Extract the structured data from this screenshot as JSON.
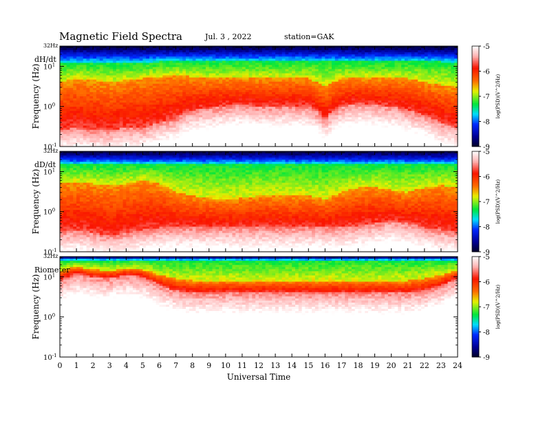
{
  "header": {
    "title": "Magnetic  Field  Spectra",
    "date": "Jul.  3  , 2022",
    "station": "station=GAK"
  },
  "chart_data": [
    {
      "type": "heatmap",
      "panel_label": "dH/dt",
      "ylabel": "Frequency  (Hz)",
      "xlabel": "",
      "x_ticks": [
        "0",
        "1",
        "2",
        "3",
        "4",
        "5",
        "6",
        "7",
        "8",
        "9",
        "10",
        "11",
        "12",
        "13",
        "14",
        "15",
        "16",
        "17",
        "18",
        "19",
        "20",
        "21",
        "22",
        "23",
        "24"
      ],
      "xlim": [
        0,
        24
      ],
      "y_ticks": [
        "10^-1",
        "10^0",
        "10^1"
      ],
      "y_top_label": "32Hz",
      "ylim": [
        0.1,
        32
      ],
      "y_scale": "log",
      "colorbar": {
        "label": "log(PSD)(V^2/Hz)",
        "ticks": [
          "-5",
          "-6",
          "-7",
          "-8",
          "-9"
        ],
        "range": [
          -9,
          -5
        ]
      },
      "profile": {
        "hours": [
          0,
          1,
          2,
          3,
          4,
          5,
          6,
          7,
          8,
          9,
          10,
          11,
          12,
          13,
          14,
          15,
          16,
          17,
          18,
          19,
          20,
          21,
          22,
          23,
          24
        ],
        "green_top_hz": [
          12,
          12,
          12,
          12,
          12,
          12,
          13,
          13,
          13,
          13,
          13,
          13,
          13,
          13,
          13,
          13,
          13,
          13,
          13,
          13,
          13,
          13,
          13,
          13,
          12
        ],
        "yellow_lower_hz": [
          4,
          5,
          4.5,
          4,
          4.5,
          5,
          5.5,
          6,
          5.5,
          5,
          5,
          5,
          5,
          5,
          5,
          5,
          3,
          5,
          5,
          5,
          5,
          5,
          4,
          3.5,
          3
        ],
        "red_lower_hz": [
          0.25,
          0.3,
          0.25,
          0.25,
          0.3,
          0.3,
          0.4,
          0.5,
          0.8,
          0.9,
          1.0,
          1.1,
          1.0,
          1.0,
          1.0,
          1.0,
          0.5,
          1.0,
          1.2,
          1.1,
          1.0,
          0.8,
          0.6,
          0.4,
          0.3
        ]
      }
    },
    {
      "type": "heatmap",
      "panel_label": "dD/dt",
      "ylabel": "Frequency  (Hz)",
      "xlabel": "",
      "x_ticks": [
        "0",
        "1",
        "2",
        "3",
        "4",
        "5",
        "6",
        "7",
        "8",
        "9",
        "10",
        "11",
        "12",
        "13",
        "14",
        "15",
        "16",
        "17",
        "18",
        "19",
        "20",
        "21",
        "22",
        "23",
        "24"
      ],
      "xlim": [
        0,
        24
      ],
      "y_ticks": [
        "10^-1",
        "10^0",
        "10^1"
      ],
      "y_top_label": "32Hz",
      "ylim": [
        0.1,
        32
      ],
      "y_scale": "log",
      "colorbar": {
        "label": "log(PSD)(V^2/Hz)",
        "ticks": [
          "-5",
          "-6",
          "-7",
          "-8",
          "-9"
        ],
        "range": [
          -9,
          -5
        ]
      },
      "profile": {
        "hours": [
          0,
          1,
          2,
          3,
          4,
          5,
          6,
          7,
          8,
          9,
          10,
          11,
          12,
          13,
          14,
          15,
          16,
          17,
          18,
          19,
          20,
          21,
          22,
          23,
          24
        ],
        "green_top_hz": [
          15,
          15,
          15,
          15,
          15,
          15,
          15,
          15,
          15,
          15,
          15,
          15,
          15,
          15,
          15,
          15,
          15,
          15,
          15,
          15,
          15,
          15,
          15,
          15,
          15
        ],
        "yellow_lower_hz": [
          5,
          5.5,
          5,
          4.5,
          5,
          6,
          5,
          3,
          2.5,
          2.2,
          2,
          2.2,
          2.5,
          2.5,
          2.5,
          2.5,
          2,
          3,
          4,
          4,
          3.5,
          3,
          4,
          4.5,
          4
        ],
        "red_lower_hz": [
          0.3,
          0.35,
          0.3,
          0.25,
          0.3,
          0.35,
          0.4,
          0.4,
          0.4,
          0.4,
          0.4,
          0.4,
          0.4,
          0.4,
          0.4,
          0.4,
          0.4,
          0.4,
          0.45,
          0.5,
          0.6,
          0.5,
          0.4,
          0.35,
          0.3
        ]
      }
    },
    {
      "type": "heatmap",
      "panel_label": "Riometer",
      "ylabel": "Frequency  (Hz)",
      "xlabel": "Universal Time",
      "x_ticks": [
        "0",
        "1",
        "2",
        "3",
        "4",
        "5",
        "6",
        "7",
        "8",
        "9",
        "10",
        "11",
        "12",
        "13",
        "14",
        "15",
        "16",
        "17",
        "18",
        "19",
        "20",
        "21",
        "22",
        "23",
        "24"
      ],
      "xlim": [
        0,
        24
      ],
      "y_ticks": [
        "10^-1",
        "10^0",
        "10^1"
      ],
      "y_top_label": "32Hz",
      "ylim": [
        0.1,
        32
      ],
      "y_scale": "log",
      "colorbar": {
        "label": "log(PSD)(V^2/Hz)",
        "ticks": [
          "-5",
          "-6",
          "-7",
          "-8",
          "-9"
        ],
        "range": [
          -9,
          -5
        ]
      },
      "profile": {
        "hours": [
          0,
          1,
          2,
          3,
          4,
          5,
          6,
          7,
          8,
          9,
          10,
          11,
          12,
          13,
          14,
          15,
          16,
          17,
          18,
          19,
          20,
          21,
          22,
          23,
          24
        ],
        "green_top_hz": [
          26,
          26,
          26,
          26,
          26,
          26,
          26,
          26,
          26,
          26,
          26,
          26,
          26,
          26,
          26,
          26,
          26,
          26,
          26,
          26,
          26,
          26,
          26,
          26,
          26
        ],
        "yellow_lower_hz": [
          14,
          18,
          15,
          14,
          16,
          15,
          11,
          9,
          8,
          8,
          8,
          8,
          8,
          8,
          8,
          8,
          8,
          8,
          8,
          8,
          8,
          8,
          9,
          11,
          14
        ],
        "red_lower_hz": [
          8,
          12,
          10,
          9,
          11,
          10,
          6,
          4.5,
          4,
          4,
          4,
          4,
          4,
          4,
          4,
          4,
          4,
          4,
          4,
          4,
          4,
          4,
          4.5,
          6,
          9
        ]
      }
    }
  ]
}
